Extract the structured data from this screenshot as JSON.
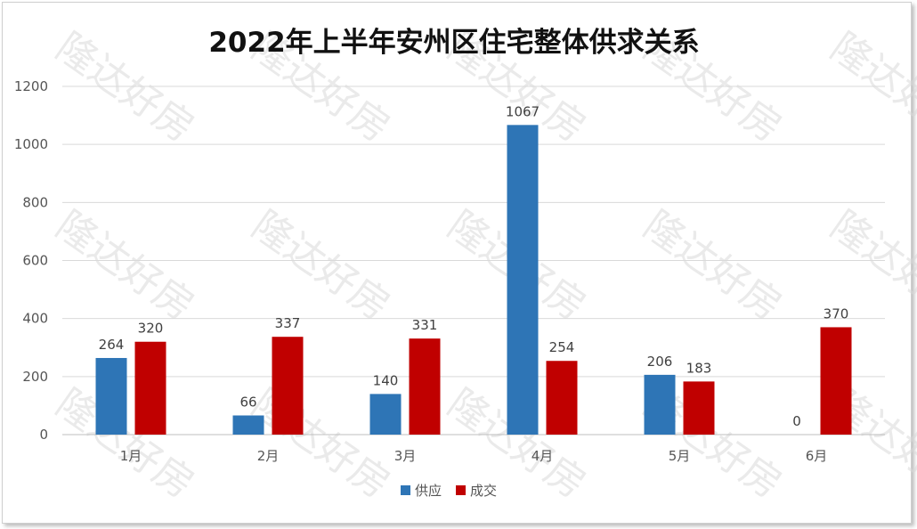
{
  "chart_data": {
    "type": "bar",
    "title": "2022年上半年安州区住宅整体供求关系",
    "categories": [
      "1月",
      "2月",
      "3月",
      "4月",
      "5月",
      "6月"
    ],
    "series": [
      {
        "name": "供应",
        "color": "#2e75b6",
        "values": [
          264,
          66,
          140,
          1067,
          206,
          0
        ]
      },
      {
        "name": "成交",
        "color": "#c00000",
        "values": [
          320,
          337,
          331,
          254,
          183,
          370
        ]
      }
    ],
    "ylim": [
      0,
      1200
    ],
    "yticks": [
      0,
      200,
      400,
      600,
      800,
      1000,
      1200
    ],
    "grid": true,
    "legend_position": "bottom",
    "watermark": "隆达好房"
  }
}
